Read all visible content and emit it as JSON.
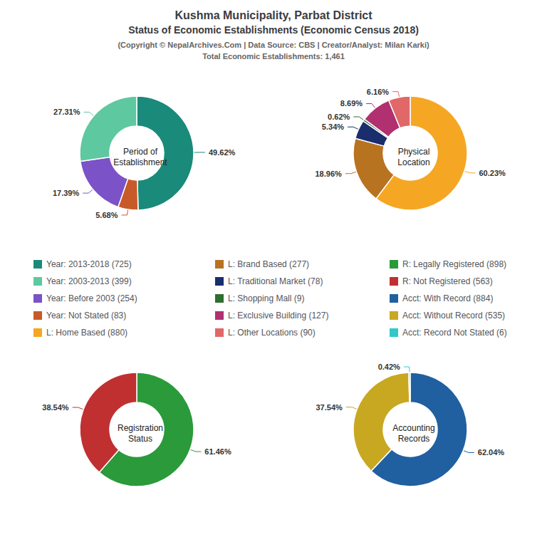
{
  "title": "Kushma Municipality, Parbat District",
  "subtitle": "Status of Economic Establishments (Economic Census 2018)",
  "annotations": [
    "(Copyright © NepalArchives.Com | Data Source: CBS | Creator/Analyst: Milan Karki)",
    "Total Economic Establishments: 1,461"
  ],
  "legend_items": [
    "Year: 2013-2018 (725)",
    "Year: 2003-2013 (399)",
    "Year: Before 2003 (254)",
    "Year: Not Stated (83)",
    "L: Home Based (880)",
    "L: Brand Based (277)",
    "L: Traditional Market (78)",
    "L: Shopping Mall (9)",
    "L: Exclusive Building (127)",
    "L: Other Locations (90)",
    "R: Legally Registered (898)",
    "R: Not Registered (563)",
    "Acct: With Record (884)",
    "Acct: Without Record (535)",
    "Acct: Record Not Stated (6)"
  ],
  "chart_data": [
    {
      "type": "pie",
      "title": "Period of\nEstablishment",
      "categories": [
        "Year: 2013-2018 (725)",
        "Year: Not Stated (83)",
        "Year: Before 2003 (254)",
        "Year: 2003-2013 (399)"
      ],
      "values": [
        49.62,
        5.68,
        17.39,
        27.31
      ],
      "value_labels": [
        "49.62%",
        "5.68%",
        "17.39%",
        "27.31%"
      ],
      "colors": [
        "#1a8a7a",
        "#c85a2a",
        "#7b52c8",
        "#5ec8a0"
      ],
      "data_labels": true
    },
    {
      "type": "pie",
      "title": "Physical\nLocation",
      "categories": [
        "L: Home Based (880)",
        "L: Brand Based (277)",
        "L: Traditional Market (78)",
        "L: Shopping Mall (9)",
        "L: Exclusive Building (127)",
        "L: Other Locations (90)"
      ],
      "values": [
        60.23,
        18.96,
        5.34,
        0.62,
        8.69,
        6.16
      ],
      "value_labels": [
        "60.23%",
        "18.96%",
        "5.34%",
        "0.62%",
        "8.69%",
        "6.16%"
      ],
      "colors": [
        "#f5a623",
        "#b87320",
        "#1a2e6e",
        "#2e6e2e",
        "#b03070",
        "#e06868"
      ],
      "data_labels": true
    },
    {
      "type": "pie",
      "title": "Registration\nStatus",
      "categories": [
        "R: Legally Registered (898)",
        "R: Not Registered (563)"
      ],
      "values": [
        61.46,
        38.54
      ],
      "value_labels": [
        "61.46%",
        "38.54%"
      ],
      "colors": [
        "#2a9a3a",
        "#c03030"
      ],
      "data_labels": true
    },
    {
      "type": "pie",
      "title": "Accounting\nRecords",
      "categories": [
        "Acct: With Record (884)",
        "Acct: Without Record (535)",
        "Acct: Record Not Stated (6)"
      ],
      "values": [
        62.04,
        37.54,
        0.42
      ],
      "value_labels": [
        "62.04%",
        "37.54%",
        "0.42%"
      ],
      "colors": [
        "#2060a0",
        "#c8a820",
        "#30c8c8"
      ],
      "data_labels": true
    }
  ]
}
